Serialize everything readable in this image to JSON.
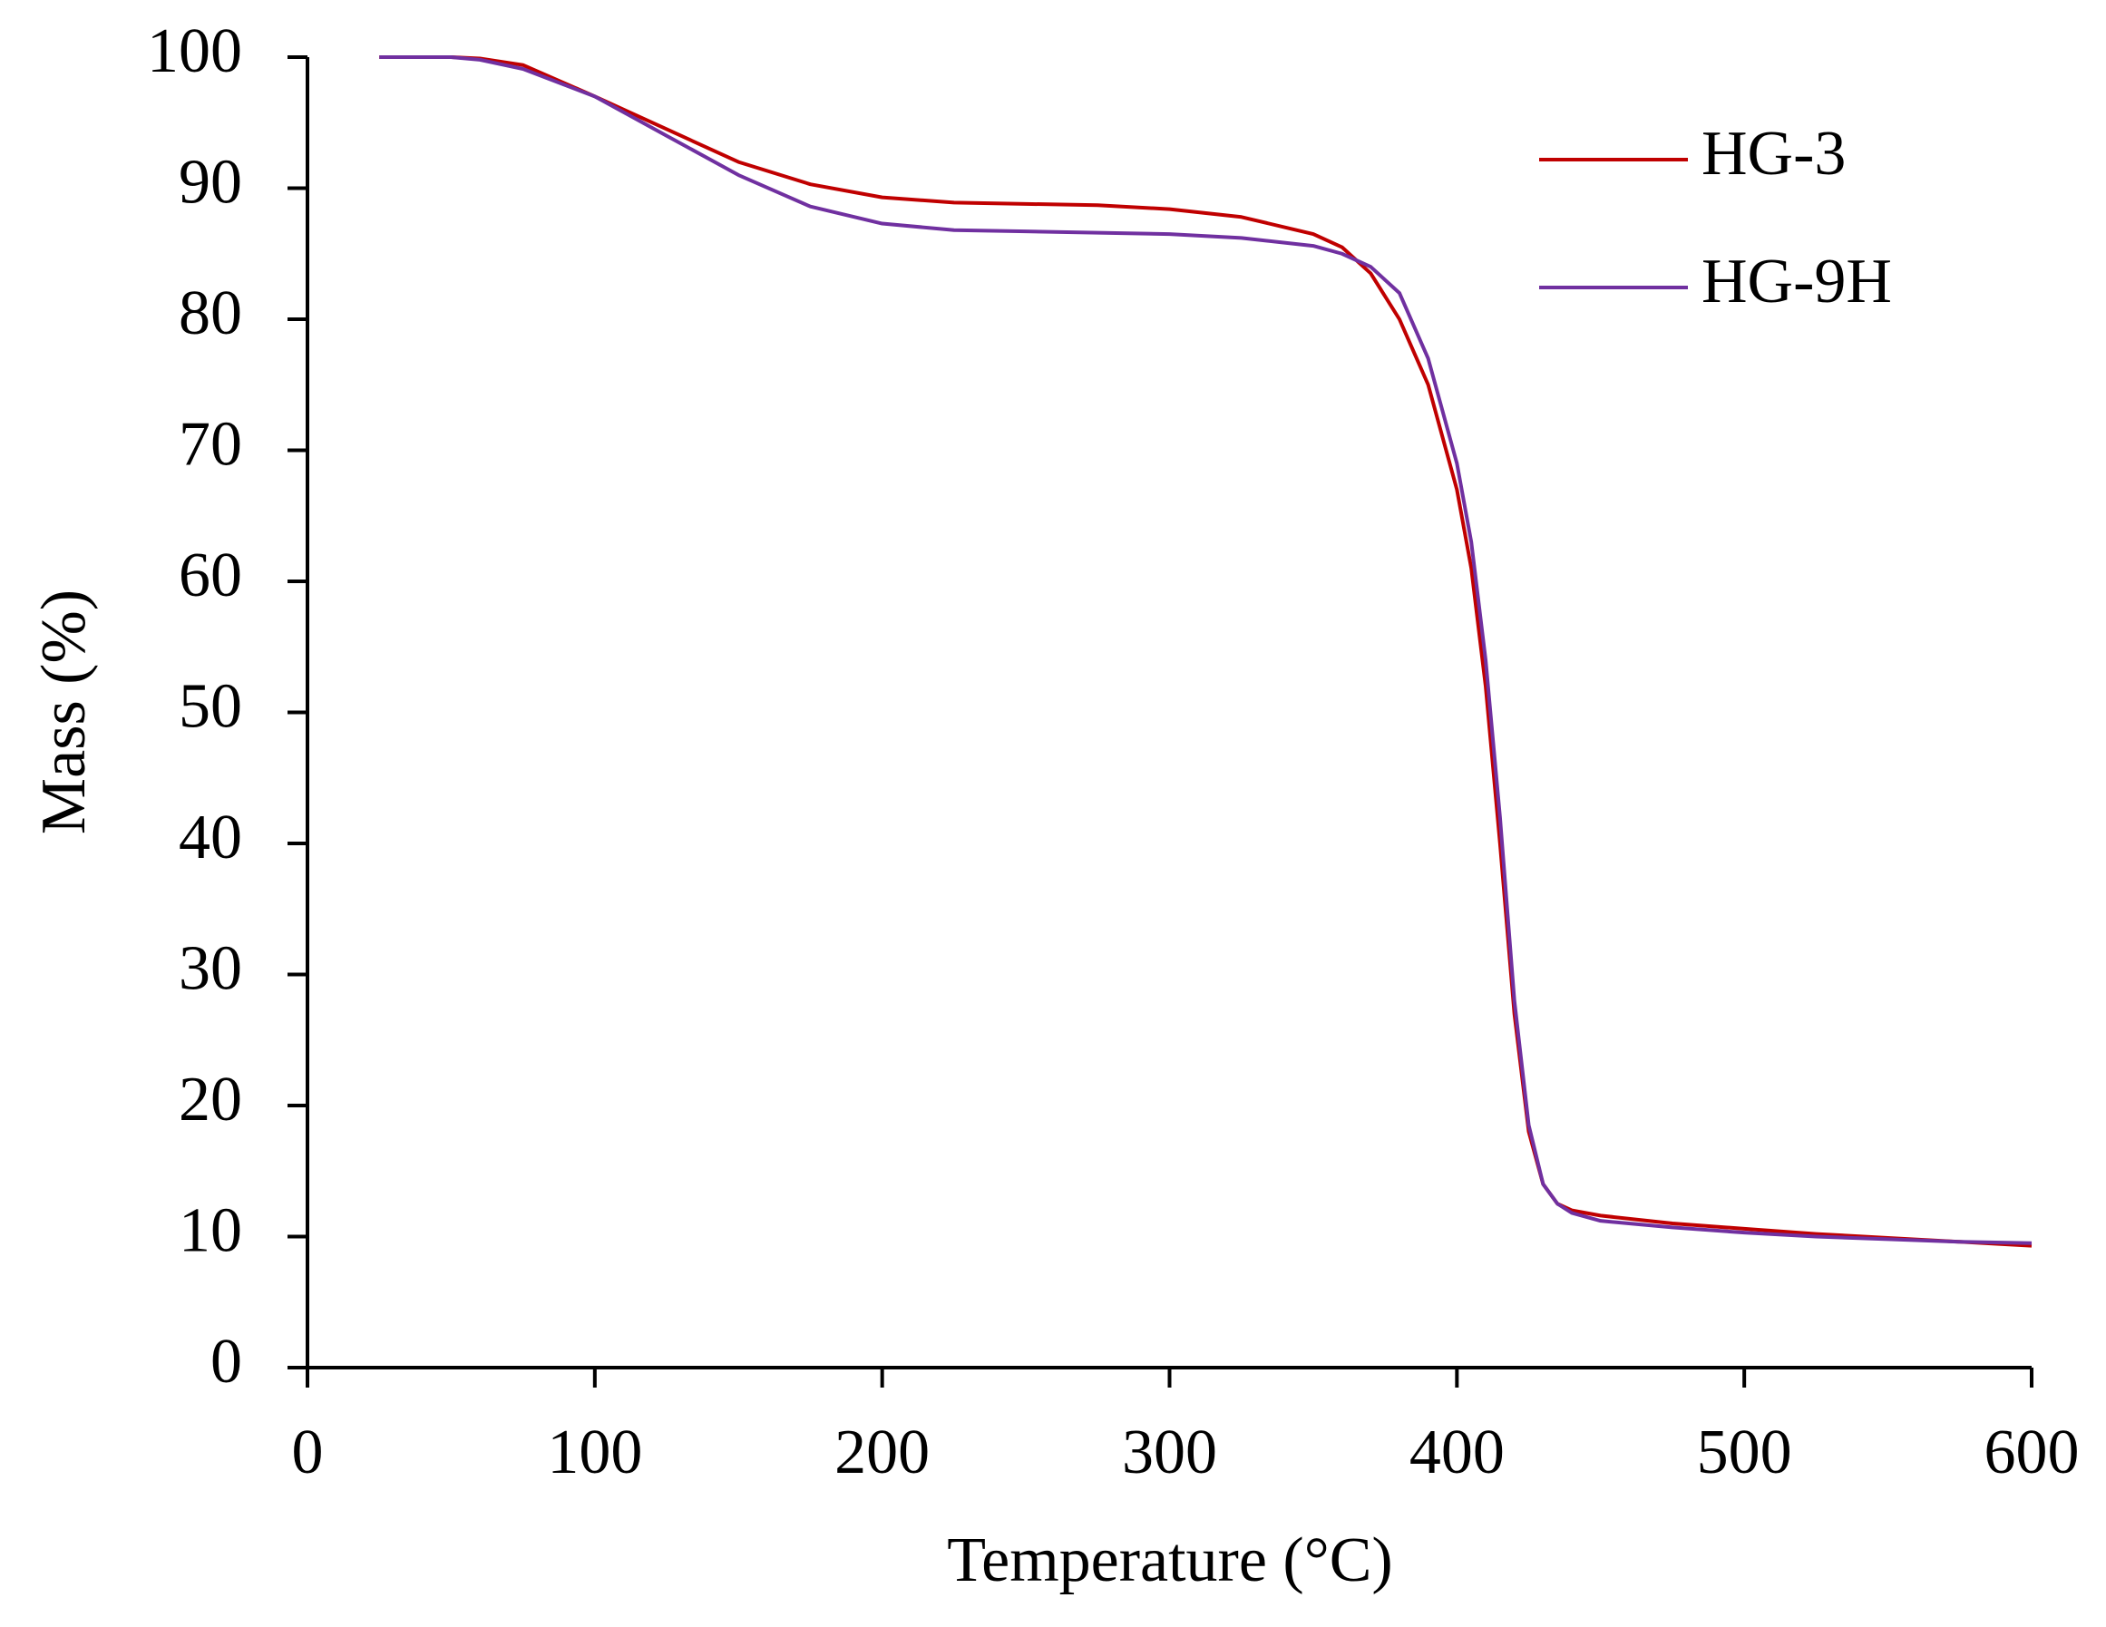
{
  "chart_data": {
    "type": "line",
    "x_label": "Temperature (°C)",
    "y_label": "Mass (%)",
    "x": [
      25,
      50,
      60,
      75,
      100,
      125,
      150,
      175,
      200,
      225,
      250,
      275,
      300,
      325,
      350,
      360,
      370,
      380,
      390,
      400,
      405,
      410,
      415,
      420,
      425,
      430,
      435,
      440,
      450,
      475,
      500,
      525,
      550,
      575,
      600
    ],
    "series": [
      {
        "name": "HG-3",
        "color": "#c00000",
        "values": [
          100,
          100,
          99.9,
          99.4,
          97,
          94.5,
          92,
          90.3,
          89.3,
          88.9,
          88.8,
          88.7,
          88.4,
          87.8,
          86.5,
          85.5,
          83.5,
          80,
          75,
          67,
          61,
          52,
          40,
          27,
          18,
          14,
          12.5,
          12,
          11.6,
          11,
          10.6,
          10.2,
          9.9,
          9.6,
          9.3
        ]
      },
      {
        "name": "HG-9H",
        "color": "#7030a0",
        "values": [
          100,
          100,
          99.8,
          99.1,
          97,
          94,
          91,
          88.6,
          87.3,
          86.8,
          86.7,
          86.6,
          86.5,
          86.2,
          85.6,
          85,
          84,
          82,
          77,
          69,
          63,
          54,
          42,
          28,
          18.5,
          14,
          12.5,
          11.8,
          11.2,
          10.7,
          10.3,
          10,
          9.8,
          9.6,
          9.5
        ]
      }
    ],
    "xlim": [
      0,
      600
    ],
    "xticks": [
      0,
      100,
      200,
      300,
      400,
      500,
      600
    ],
    "ylim": [
      0,
      100
    ],
    "yticks": [
      0,
      10,
      20,
      30,
      40,
      50,
      60,
      70,
      80,
      90,
      100
    ],
    "grid": false,
    "legend": "upper right"
  }
}
